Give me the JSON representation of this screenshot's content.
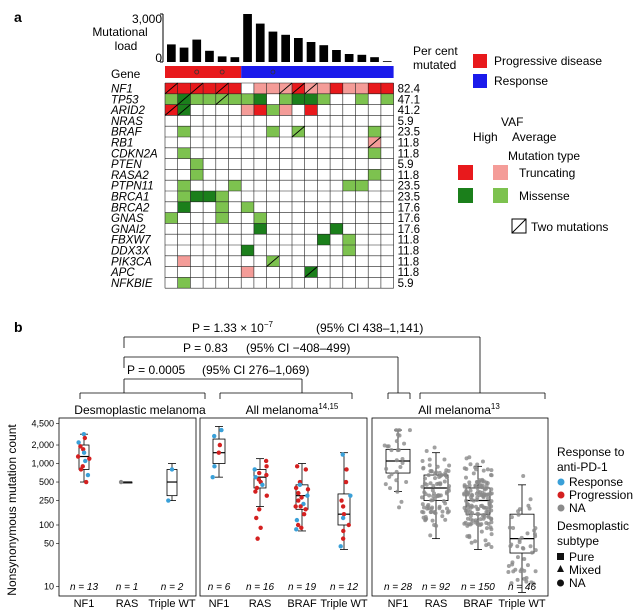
{
  "panel_a": {
    "label": "a",
    "load_title": "Mutational load",
    "load_ticks": [
      "3,000",
      "0"
    ],
    "gene_header": "Gene",
    "pct_header": "Per cent mutated",
    "genes": [
      "NF1",
      "TP53",
      "ARID2",
      "NRAS",
      "BRAF",
      "RB1",
      "CDKN2A",
      "PTEN",
      "RASA2",
      "PTPN11",
      "BRCA1",
      "BRCA2",
      "GNAS",
      "GNAI2",
      "FBXW7",
      "DDX3X",
      "PIK3CA",
      "APC",
      "NFKBIE"
    ],
    "percents": [
      "82.4",
      "47.1",
      "41.2",
      "5.9",
      "23.5",
      "11.8",
      "11.8",
      "5.9",
      "11.8",
      "23.5",
      "23.5",
      "17.6",
      "17.6",
      "17.6",
      "11.8",
      "11.8",
      "11.8",
      "11.8",
      "5.9"
    ],
    "loads": [
      1100,
      900,
      1400,
      700,
      350,
      300,
      3000,
      2400,
      1900,
      1700,
      1500,
      1250,
      1050,
      750,
      500,
      450,
      300,
      50
    ],
    "responses": [
      "P",
      "P",
      "P",
      "P",
      "P",
      "P",
      "R",
      "R",
      "R",
      "R",
      "R",
      "R",
      "R",
      "R",
      "R",
      "R",
      "R",
      "R"
    ],
    "legend_response": [
      "Progressive disease",
      "Response"
    ],
    "legend_vaf": {
      "title": "VAF",
      "high": "High",
      "average": "Average",
      "mutation_type": "Mutation type",
      "truncating": "Truncating",
      "missense": "Missense",
      "two": "Two mutations"
    },
    "colors": {
      "progression": "#e8191c",
      "response": "#1a1aeb",
      "trunc_high": "#e8191c",
      "trunc_avg": "#f49c98",
      "mis_high": "#1b7f1b",
      "mis_avg": "#7dc24f"
    }
  },
  "panel_b": {
    "label": "b",
    "comparisons": [
      {
        "p": "P = 1.33 × 10",
        "exp": "−7",
        "ci": "(95% CI 438–1,141)"
      },
      {
        "p": "P = 0.83",
        "ci": "(95% CI −408–499)"
      },
      {
        "p": "P = 0.0005",
        "ci": "(95% CI 276–1,069)"
      }
    ],
    "ylabel": "Nonsynonymous mutation count",
    "yticks": [
      "4,500",
      "2,000",
      "1,000",
      "500",
      "250",
      "100",
      "50",
      "10"
    ],
    "panels": [
      {
        "title": "Desmoplastic melanoma",
        "sup": "",
        "groups": [
          "NF1",
          "RAS",
          "Triple WT"
        ],
        "ns": [
          "n = 13",
          "n = 1",
          "n = 2"
        ]
      },
      {
        "title": "All melanoma",
        "sup": "14,15",
        "groups": [
          "NF1",
          "RAS",
          "BRAF",
          "Triple WT"
        ],
        "ns": [
          "n = 6",
          "n = 16",
          "n = 19",
          "n = 12"
        ]
      },
      {
        "title": "All melanoma",
        "sup": "13",
        "groups": [
          "NF1",
          "RAS",
          "BRAF",
          "Triple WT"
        ],
        "ns": [
          "n = 28",
          "n = 92",
          "n = 150",
          "n = 46"
        ]
      }
    ],
    "legend": {
      "response_title": "Response to anti-PD-1",
      "response": [
        "Response",
        "Progression",
        "NA"
      ],
      "subtype_title": "Desmoplastic subtype",
      "subtype": [
        "Pure",
        "Mixed",
        "NA"
      ]
    },
    "colors": {
      "response": "#3aa0d8",
      "progression": "#d42020",
      "na": "#8a8a8a"
    }
  },
  "chart_data": [
    {
      "type": "bar",
      "title": "Mutational load",
      "categories": [
        "1",
        "2",
        "3",
        "4",
        "5",
        "6",
        "7",
        "8",
        "9",
        "10",
        "11",
        "12",
        "13",
        "14",
        "15",
        "16",
        "17",
        "18"
      ],
      "values": [
        1100,
        900,
        1400,
        700,
        350,
        300,
        3000,
        2400,
        1900,
        1700,
        1500,
        1250,
        1050,
        750,
        500,
        450,
        300,
        50
      ],
      "ylim": [
        0,
        3000
      ]
    },
    {
      "type": "scatter",
      "title": "Nonsynonymous mutation count",
      "ylabel": "Nonsynonymous mutation count",
      "yscale": "log",
      "series": [
        {
          "name": "Desmoplastic melanoma",
          "categories": [
            "NF1",
            "RAS",
            "Triple WT"
          ],
          "median": [
            1300,
            500,
            500
          ],
          "n": [
            13,
            1,
            2
          ]
        },
        {
          "name": "All melanoma 14,15",
          "categories": [
            "NF1",
            "RAS",
            "BRAF",
            "Triple WT"
          ],
          "median": [
            1500,
            600,
            300,
            180
          ],
          "n": [
            6,
            16,
            19,
            12
          ]
        },
        {
          "name": "All melanoma 13",
          "categories": [
            "NF1",
            "RAS",
            "BRAF",
            "Triple WT"
          ],
          "median": [
            1100,
            400,
            250,
            60
          ],
          "n": [
            28,
            92,
            150,
            46
          ]
        }
      ]
    }
  ]
}
